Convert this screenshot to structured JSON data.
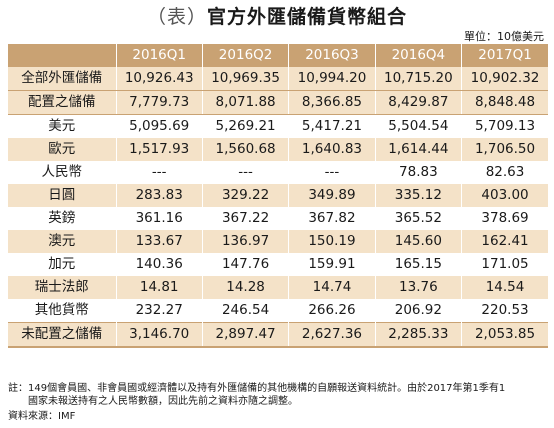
{
  "title": {
    "paren_open": "（",
    "paren_word": "表",
    "paren_close": "）",
    "main": "官方外匯儲備貨幣組合"
  },
  "unit": "單位：10億美元",
  "columns": [
    "2016Q1",
    "2016Q2",
    "2016Q3",
    "2016Q4",
    "2017Q1"
  ],
  "rows": [
    {
      "label": "全部外匯儲備",
      "values": [
        "10,926.43",
        "10,969.35",
        "10,994.20",
        "10,715.20",
        "10,902.32"
      ]
    },
    {
      "label": "配置之儲備",
      "values": [
        "7,779.73",
        "8,071.88",
        "8,366.85",
        "8,429.87",
        "8,848.48"
      ]
    },
    {
      "label": "美元",
      "values": [
        "5,095.69",
        "5,269.21",
        "5,417.21",
        "5,504.54",
        "5,709.13"
      ]
    },
    {
      "label": "歐元",
      "values": [
        "1,517.93",
        "1,560.68",
        "1,640.83",
        "1,614.44",
        "1,706.50"
      ]
    },
    {
      "label": "人民幣",
      "values": [
        "---",
        "---",
        "---",
        "78.83",
        "82.63"
      ]
    },
    {
      "label": "日圓",
      "values": [
        "283.83",
        "329.22",
        "349.89",
        "335.12",
        "403.00"
      ]
    },
    {
      "label": "英鎊",
      "values": [
        "361.16",
        "367.22",
        "367.82",
        "365.52",
        "378.69"
      ]
    },
    {
      "label": "澳元",
      "values": [
        "133.67",
        "136.97",
        "150.19",
        "145.60",
        "162.41"
      ]
    },
    {
      "label": "加元",
      "values": [
        "140.36",
        "147.76",
        "159.91",
        "165.15",
        "171.05"
      ]
    },
    {
      "label": "瑞士法郎",
      "values": [
        "14.81",
        "14.28",
        "14.74",
        "13.76",
        "14.54"
      ]
    },
    {
      "label": "其他貨幣",
      "values": [
        "232.27",
        "246.54",
        "266.26",
        "206.92",
        "220.53"
      ]
    },
    {
      "label": "未配置之儲備",
      "values": [
        "3,146.70",
        "2,897.47",
        "2,627.36",
        "2,285.33",
        "2,053.85"
      ]
    }
  ],
  "note_line1": "註：149個會員國、非會員國或經濟體以及持有外匯儲備的其他機構的自願報送資料統計。由於2017年第1季有1",
  "note_line2": "　　國家未報送持有之人民幣數額，因此先前之資料亦隨之調整。",
  "source": "資料來源：IMF",
  "colors": {
    "header_bg": "#c9a273",
    "shade_bg": "#f4e2c8",
    "text": "#1a1a1a"
  }
}
